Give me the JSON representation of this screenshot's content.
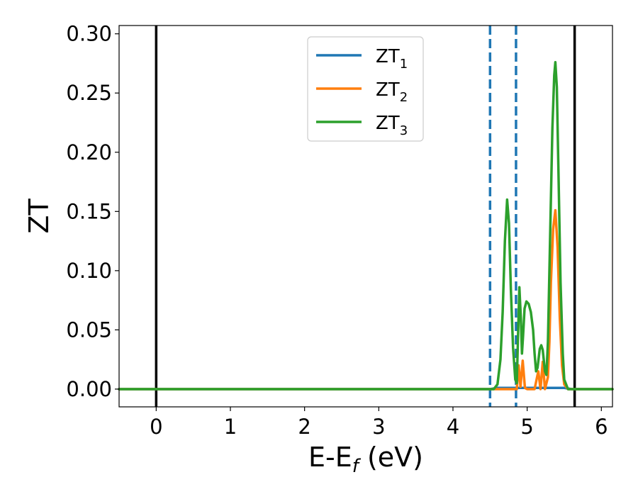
{
  "chart_data": {
    "type": "line",
    "title": "",
    "xlabel": {
      "base": "E-E",
      "subscript": "f",
      "suffix": " (eV)"
    },
    "ylabel": "ZT",
    "xlim": [
      -0.5,
      6.15
    ],
    "ylim": [
      -0.015,
      0.307
    ],
    "x_ticks": [
      0,
      1,
      2,
      3,
      4,
      5,
      6
    ],
    "y_ticks": [
      0.0,
      0.05,
      0.1,
      0.15,
      0.2,
      0.25,
      0.3
    ],
    "x_tick_labels": [
      "0",
      "1",
      "2",
      "3",
      "4",
      "5",
      "6"
    ],
    "y_tick_labels": [
      "0.00",
      "0.05",
      "0.10",
      "0.15",
      "0.20",
      "0.25",
      "0.30"
    ],
    "grid": false,
    "legend_position": "top-center",
    "vertical_lines": [
      {
        "x": 0.0,
        "style": "solid",
        "color": "#000000"
      },
      {
        "x": 5.64,
        "style": "solid",
        "color": "#000000"
      },
      {
        "x": 4.5,
        "style": "dashed",
        "color": "#1f77b4"
      },
      {
        "x": 4.85,
        "style": "dashed",
        "color": "#1f77b4"
      }
    ],
    "series": [
      {
        "name": "ZT",
        "subscript": "1",
        "color": "#1f77b4",
        "points": [
          [
            -0.5,
            0.0
          ],
          [
            4.5,
            0.0
          ],
          [
            4.6,
            0.001
          ],
          [
            4.7,
            0.001
          ],
          [
            4.8,
            0.001
          ],
          [
            4.9,
            0.001
          ],
          [
            5.0,
            0.001
          ],
          [
            5.1,
            0.001
          ],
          [
            5.2,
            0.001
          ],
          [
            5.3,
            0.001
          ],
          [
            5.4,
            0.001
          ],
          [
            5.5,
            0.001
          ],
          [
            5.6,
            0.0
          ],
          [
            6.15,
            0.0
          ]
        ]
      },
      {
        "name": "ZT",
        "subscript": "2",
        "color": "#ff7f0e",
        "points": [
          [
            -0.5,
            0.0
          ],
          [
            4.86,
            0.0
          ],
          [
            4.885,
            0.02
          ],
          [
            4.91,
            0.002
          ],
          [
            4.94,
            0.024
          ],
          [
            4.97,
            0.001
          ],
          [
            5.0,
            0.0
          ],
          [
            5.1,
            0.0
          ],
          [
            5.15,
            0.015
          ],
          [
            5.18,
            0.0
          ],
          [
            5.21,
            0.023
          ],
          [
            5.24,
            0.0
          ],
          [
            5.28,
            0.01
          ],
          [
            5.3,
            0.04
          ],
          [
            5.32,
            0.09
          ],
          [
            5.35,
            0.135
          ],
          [
            5.38,
            0.151
          ],
          [
            5.41,
            0.12
          ],
          [
            5.44,
            0.06
          ],
          [
            5.47,
            0.02
          ],
          [
            5.5,
            0.004
          ],
          [
            5.55,
            0.0
          ],
          [
            6.15,
            0.0
          ]
        ]
      },
      {
        "name": "ZT",
        "subscript": "3",
        "color": "#2ca02c",
        "points": [
          [
            -0.5,
            0.0
          ],
          [
            4.55,
            0.0
          ],
          [
            4.6,
            0.004
          ],
          [
            4.64,
            0.025
          ],
          [
            4.67,
            0.065
          ],
          [
            4.7,
            0.125
          ],
          [
            4.73,
            0.16
          ],
          [
            4.755,
            0.14
          ],
          [
            4.78,
            0.085
          ],
          [
            4.81,
            0.035
          ],
          [
            4.84,
            0.008
          ],
          [
            4.86,
            0.005
          ],
          [
            4.875,
            0.04
          ],
          [
            4.895,
            0.086
          ],
          [
            4.915,
            0.06
          ],
          [
            4.93,
            0.03
          ],
          [
            4.945,
            0.045
          ],
          [
            4.965,
            0.068
          ],
          [
            4.99,
            0.074
          ],
          [
            5.02,
            0.072
          ],
          [
            5.05,
            0.065
          ],
          [
            5.08,
            0.05
          ],
          [
            5.1,
            0.03
          ],
          [
            5.12,
            0.015
          ],
          [
            5.14,
            0.018
          ],
          [
            5.17,
            0.034
          ],
          [
            5.19,
            0.037
          ],
          [
            5.21,
            0.033
          ],
          [
            5.24,
            0.015
          ],
          [
            5.26,
            0.012
          ],
          [
            5.28,
            0.04
          ],
          [
            5.31,
            0.13
          ],
          [
            5.34,
            0.22
          ],
          [
            5.365,
            0.265
          ],
          [
            5.38,
            0.276
          ],
          [
            5.4,
            0.255
          ],
          [
            5.42,
            0.19
          ],
          [
            5.45,
            0.09
          ],
          [
            5.48,
            0.03
          ],
          [
            5.5,
            0.008
          ],
          [
            5.55,
            0.0
          ],
          [
            6.15,
            0.0
          ]
        ]
      }
    ]
  }
}
